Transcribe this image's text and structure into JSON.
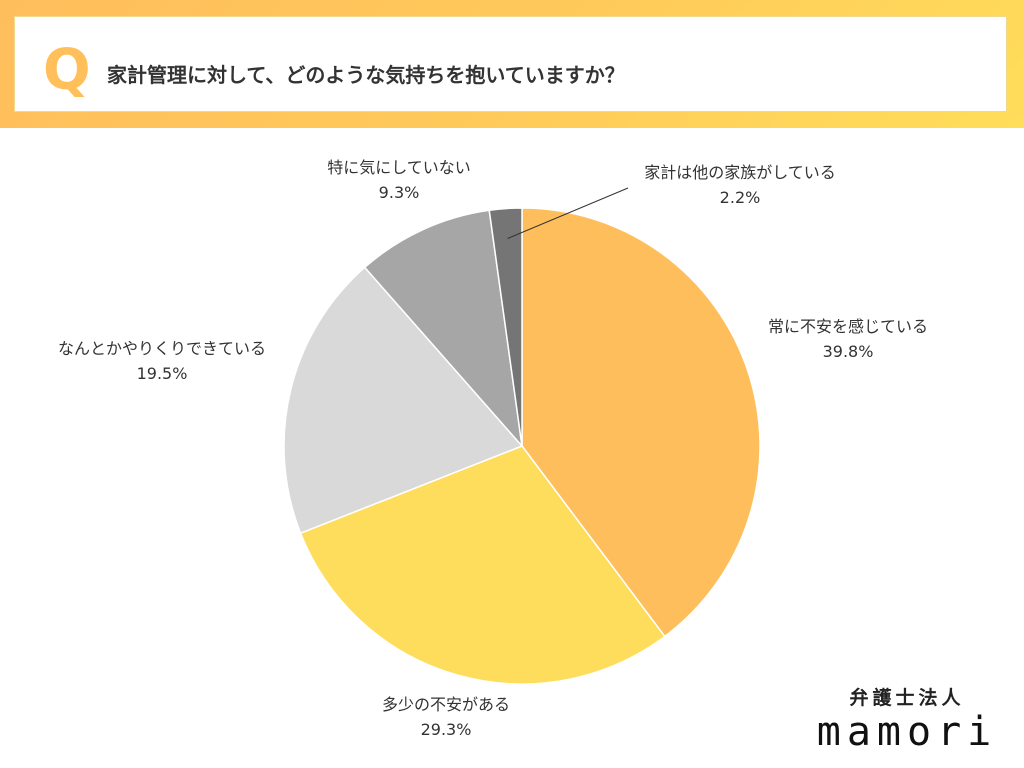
{
  "question": {
    "letter": "Q",
    "text": "家計管理に対して、どのような気持ちを抱いていますか？"
  },
  "brand": {
    "sub": "弁護士法人",
    "name": "mamori"
  },
  "colors": {
    "banner": "#ffc45b",
    "accent": "#ffc05b"
  },
  "chart_data": {
    "type": "pie",
    "start": "top",
    "direction": "clockwise",
    "slices": [
      {
        "label": "常に不安を感じている",
        "value": 39.8,
        "value_label": "39.8%",
        "color": "#ffbe5c"
      },
      {
        "label": "多少の不安がある",
        "value": 29.3,
        "value_label": "29.3%",
        "color": "#ffdd5c"
      },
      {
        "label": "なんとかやりくりできている",
        "value": 19.5,
        "value_label": "19.5%",
        "color": "#d9d9d9"
      },
      {
        "label": "特に気にしていない",
        "value": 9.3,
        "value_label": "9.3%",
        "color": "#a6a6a6"
      },
      {
        "label": "家計は他の家族がしている",
        "value": 2.2,
        "value_label": "2.2%",
        "color": "#757575"
      }
    ]
  }
}
